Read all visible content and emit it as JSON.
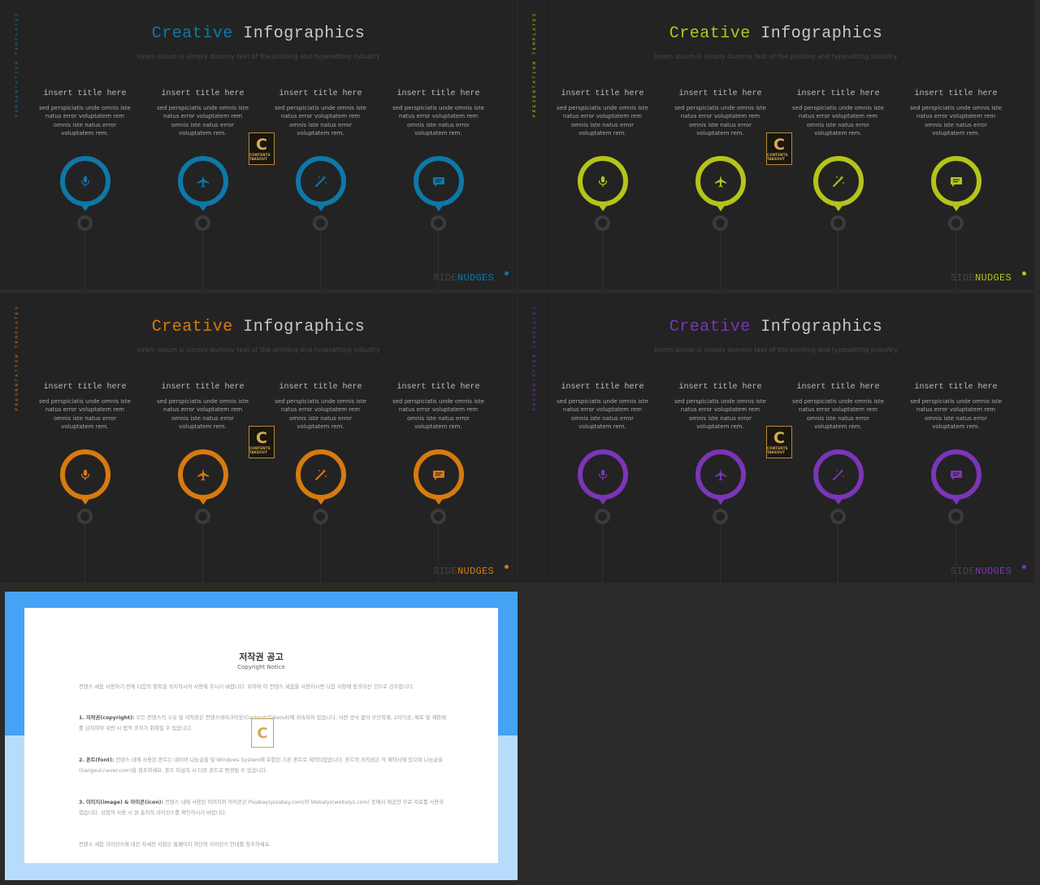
{
  "slides": [
    {
      "vertical_label": "PRESENTATION TEMPLATES",
      "title_accent": "Creative",
      "title_rest": "Infographics",
      "subtitle": "lorem ipsum is simply dummy text of the printing and typesetting industry",
      "accent_color": "#0e78a8",
      "columns": [
        {
          "title": "insert title here",
          "body": "sed perspiciatis unde omnis iste natus error voluptatem rem omnis iste natus error voluptatem rem.",
          "icon": "microphone-icon"
        },
        {
          "title": "insert title here",
          "body": "sed perspiciatis unde omnis iste natus error voluptatem rem omnis iste natus error voluptatem rem.",
          "icon": "airplane-icon"
        },
        {
          "title": "insert title here",
          "body": "sed perspiciatis unde omnis iste natus error voluptatem rem omnis iste natus error voluptatem rem.",
          "icon": "magic-wand-icon"
        },
        {
          "title": "insert title here",
          "body": "sed perspiciatis unde omnis iste natus error voluptatem rem omnis iste natus error voluptatem rem.",
          "icon": "chat-bubble-icon"
        }
      ],
      "logo_letter": "C",
      "logo_text": "CONTENTS TAKEOUT",
      "brand_part1": "SIDE",
      "brand_part2": "NUDGES"
    },
    {
      "vertical_label": "PRESENTATION TEMPLATES",
      "title_accent": "Creative",
      "title_rest": "Infographics",
      "subtitle": "lorem ipsum is simply dummy text of the printing and typesetting industry",
      "accent_color": "#b5c41a",
      "columns": [
        {
          "title": "insert title here",
          "body": "sed perspiciatis unde omnis iste natus error voluptatem rem omnis iste natus error voluptatem rem.",
          "icon": "microphone-icon"
        },
        {
          "title": "insert title here",
          "body": "sed perspiciatis unde omnis iste natus error voluptatem rem omnis iste natus error voluptatem rem.",
          "icon": "airplane-icon"
        },
        {
          "title": "insert title here",
          "body": "sed perspiciatis unde omnis iste natus error voluptatem rem omnis iste natus error voluptatem rem.",
          "icon": "magic-wand-icon"
        },
        {
          "title": "insert title here",
          "body": "sed perspiciatis unde omnis iste natus error voluptatem rem omnis iste natus error voluptatem rem.",
          "icon": "chat-bubble-icon"
        }
      ],
      "logo_letter": "C",
      "logo_text": "CONTENTS TAKEOUT",
      "brand_part1": "SIDE",
      "brand_part2": "NUDGES"
    },
    {
      "vertical_label": "PRESENTATION TEMPLATES",
      "title_accent": "Creative",
      "title_rest": "Infographics",
      "subtitle": "lorem ipsum is simply dummy text of the printing and typesetting industry",
      "accent_color": "#d77a10",
      "columns": [
        {
          "title": "insert title here",
          "body": "sed perspiciatis unde omnis iste natus error voluptatem rem omnis iste natus error voluptatem rem.",
          "icon": "microphone-icon"
        },
        {
          "title": "insert title here",
          "body": "sed perspiciatis unde omnis iste natus error voluptatem rem omnis iste natus error voluptatem rem.",
          "icon": "airplane-icon"
        },
        {
          "title": "insert title here",
          "body": "sed perspiciatis unde omnis iste natus error voluptatem rem omnis iste natus error voluptatem rem.",
          "icon": "magic-wand-icon"
        },
        {
          "title": "insert title here",
          "body": "sed perspiciatis unde omnis iste natus error voluptatem rem omnis iste natus error voluptatem rem.",
          "icon": "chat-bubble-icon"
        }
      ],
      "logo_letter": "C",
      "logo_text": "CONTENTS TAKEOUT",
      "brand_part1": "SIDE",
      "brand_part2": "NUDGES"
    },
    {
      "vertical_label": "PRESENTATION TEMPLATES",
      "title_accent": "Creative",
      "title_rest": "Infographics",
      "subtitle": "lorem ipsum is simply dummy text of the printing and typesetting industry",
      "accent_color": "#7b35b8",
      "columns": [
        {
          "title": "insert title here",
          "body": "sed perspiciatis unde omnis iste natus error voluptatem rem omnis iste natus error voluptatem rem.",
          "icon": "microphone-icon"
        },
        {
          "title": "insert title here",
          "body": "sed perspiciatis unde omnis iste natus error voluptatem rem omnis iste natus error voluptatem rem.",
          "icon": "airplane-icon"
        },
        {
          "title": "insert title here",
          "body": "sed perspiciatis unde omnis iste natus error voluptatem rem omnis iste natus error voluptatem rem.",
          "icon": "magic-wand-icon"
        },
        {
          "title": "insert title here",
          "body": "sed perspiciatis unde omnis iste natus error voluptatem rem omnis iste natus error voluptatem rem.",
          "icon": "chat-bubble-icon"
        }
      ],
      "logo_letter": "C",
      "logo_text": "CONTENTS TAKEOUT",
      "brand_part1": "SIDE",
      "brand_part2": "NUDGES"
    }
  ],
  "copyright": {
    "title": "저작권 공고",
    "subtitle": "Copyright Notice",
    "intro": "컨텐스 세움 사용하기 전에 다음의 항목을 숙지하시어 사용해 주시기 바랍니다. 위하여 이 컨텐스 세움을 사용하시면 다음 사항에 동의하신 것으로 간주합니다.",
    "section1_heading": "1. 저작권(copyright):",
    "section1_body": "모든 컨텐스의 소유 및 저작권은 컨텐스테이크아웃(ContentsTakeout)에 귀속되어 있습니다. 사전 승낙 없이 무단복제, 2차가공, 배포 및 재판매를 금지하며 위반 시 법적 조치가 취해질 수 있습니다.",
    "section2_heading": "2. 폰트(font):",
    "section2_body": "컨텐스 내에 사용된 폰트는 네이버 나눔글꼴 및 Windows System에 포함된 기본 폰트로 제작되었습니다. 폰트의 저작권은 각 제작사에 있으며 나눔글꼴(hangeul.naver.com)을 참조하세요. 폰트 미설치 시 다른 폰트로 변경될 수 있습니다.",
    "section3_heading": "3. 이미지(image) & 아이콘(icon):",
    "section3_body": "컨텐스 내에 사용된 이미지와 아이콘은 Pixabay(pixabay.com)와 Webalys(webalys.com) 등에서 제공한 무료 자료를 사용하였습니다. 상업적 사용 시 원 출처의 라이선스를 확인하시기 바랍니다.",
    "outro": "컨텐스 세움 라이선스에 대한 자세한 사항은 홈페이지 하단의 라이선스 안내를 참조하세요.",
    "logo_letter": "C"
  }
}
